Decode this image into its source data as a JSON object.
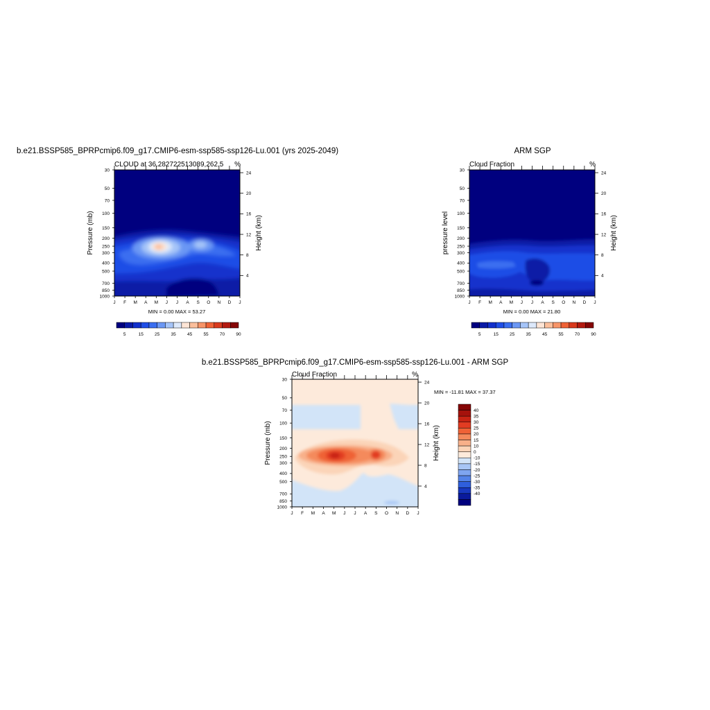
{
  "chart_data": [
    {
      "type": "heatmap",
      "suptitle": "b.e21.BSSP585_BPRPcmip6.f09_g17.CMIP6-esm-ssp585-ssp126-Lu.001 (yrs 2025-2049)",
      "title": "CLOUD at 36.282722513089,262.5",
      "units": "%",
      "ylabel": "Pressure (mb)",
      "ylabel_right": "Height (km)",
      "x_ticks": [
        "J",
        "F",
        "M",
        "A",
        "M",
        "J",
        "J",
        "A",
        "S",
        "O",
        "N",
        "D",
        "J"
      ],
      "y_ticks": [
        "30",
        "50",
        "70",
        "100",
        "150",
        "200",
        "250",
        "300",
        "400",
        "500",
        "700",
        "850",
        "1000"
      ],
      "y_ticks_right": [
        "24",
        "20",
        "16",
        "12",
        "8",
        "4"
      ],
      "stats": "MIN =   0.00 MAX =  53.27",
      "min": 0.0,
      "max": 53.27,
      "colorbar": {
        "labels": [
          "5",
          "15",
          "25",
          "35",
          "45",
          "55",
          "70",
          "90"
        ],
        "colors": [
          "#00007f",
          "#0a1aa6",
          "#1230cc",
          "#1f4ee6",
          "#3a6ef0",
          "#6b97f4",
          "#a5c4f8",
          "#dde9fb",
          "#fde5d6",
          "#fbbf9c",
          "#f79468",
          "#ef6236",
          "#d93a1d",
          "#b31a10",
          "#850606"
        ]
      }
    },
    {
      "type": "heatmap",
      "suptitle": "ARM SGP",
      "title": "Cloud Fraction",
      "units": "%",
      "ylabel": "pressure level",
      "ylabel_right": "Height (km)",
      "x_ticks": [
        "J",
        "F",
        "M",
        "A",
        "M",
        "J",
        "J",
        "A",
        "S",
        "O",
        "N",
        "D",
        "J"
      ],
      "y_ticks": [
        "30",
        "50",
        "70",
        "100",
        "150",
        "200",
        "250",
        "300",
        "400",
        "500",
        "700",
        "850",
        "1000"
      ],
      "y_ticks_right": [
        "24",
        "20",
        "16",
        "12",
        "8",
        "4"
      ],
      "stats": "MIN =   0.00 MAX =  21.80",
      "min": 0.0,
      "max": 21.8,
      "colorbar": {
        "labels": [
          "5",
          "15",
          "25",
          "35",
          "45",
          "55",
          "70",
          "90"
        ],
        "colors": [
          "#00007f",
          "#0a1aa6",
          "#1230cc",
          "#1f4ee6",
          "#3a6ef0",
          "#6b97f4",
          "#a5c4f8",
          "#dde9fb",
          "#fde5d6",
          "#fbbf9c",
          "#f79468",
          "#ef6236",
          "#d93a1d",
          "#b31a10",
          "#850606"
        ]
      }
    },
    {
      "type": "heatmap",
      "suptitle": "b.e21.BSSP585_BPRPcmip6.f09_g17.CMIP6-esm-ssp585-ssp126-Lu.001 - ARM SGP",
      "title": "Cloud Fraction",
      "units": "%",
      "ylabel": "Pressure (mb)",
      "ylabel_right": "Height (km)",
      "x_ticks": [
        "J",
        "F",
        "M",
        "A",
        "M",
        "J",
        "J",
        "A",
        "S",
        "O",
        "N",
        "D",
        "J"
      ],
      "y_ticks": [
        "30",
        "50",
        "70",
        "100",
        "150",
        "200",
        "250",
        "300",
        "400",
        "500",
        "700",
        "850",
        "1000"
      ],
      "y_ticks_right": [
        "24",
        "20",
        "16",
        "12",
        "8",
        "4"
      ],
      "stats": "MIN = -11.81 MAX =  37.37",
      "min": -11.81,
      "max": 37.37,
      "colorbar": {
        "labels": [
          "40",
          "35",
          "30",
          "25",
          "20",
          "15",
          "10",
          "0",
          "-10",
          "-15",
          "-20",
          "-25",
          "-30",
          "-35",
          "-40"
        ],
        "colors": [
          "#850606",
          "#a5120c",
          "#c72414",
          "#e23c22",
          "#ef6236",
          "#f48a5c",
          "#f8b08a",
          "#fbd4b8",
          "#fdeadb",
          "#d2e4f8",
          "#a8c6f5",
          "#7fa5f0",
          "#5483e8",
          "#2f5fdc",
          "#1838bf",
          "#0a1a9c",
          "#00007f"
        ]
      }
    }
  ]
}
